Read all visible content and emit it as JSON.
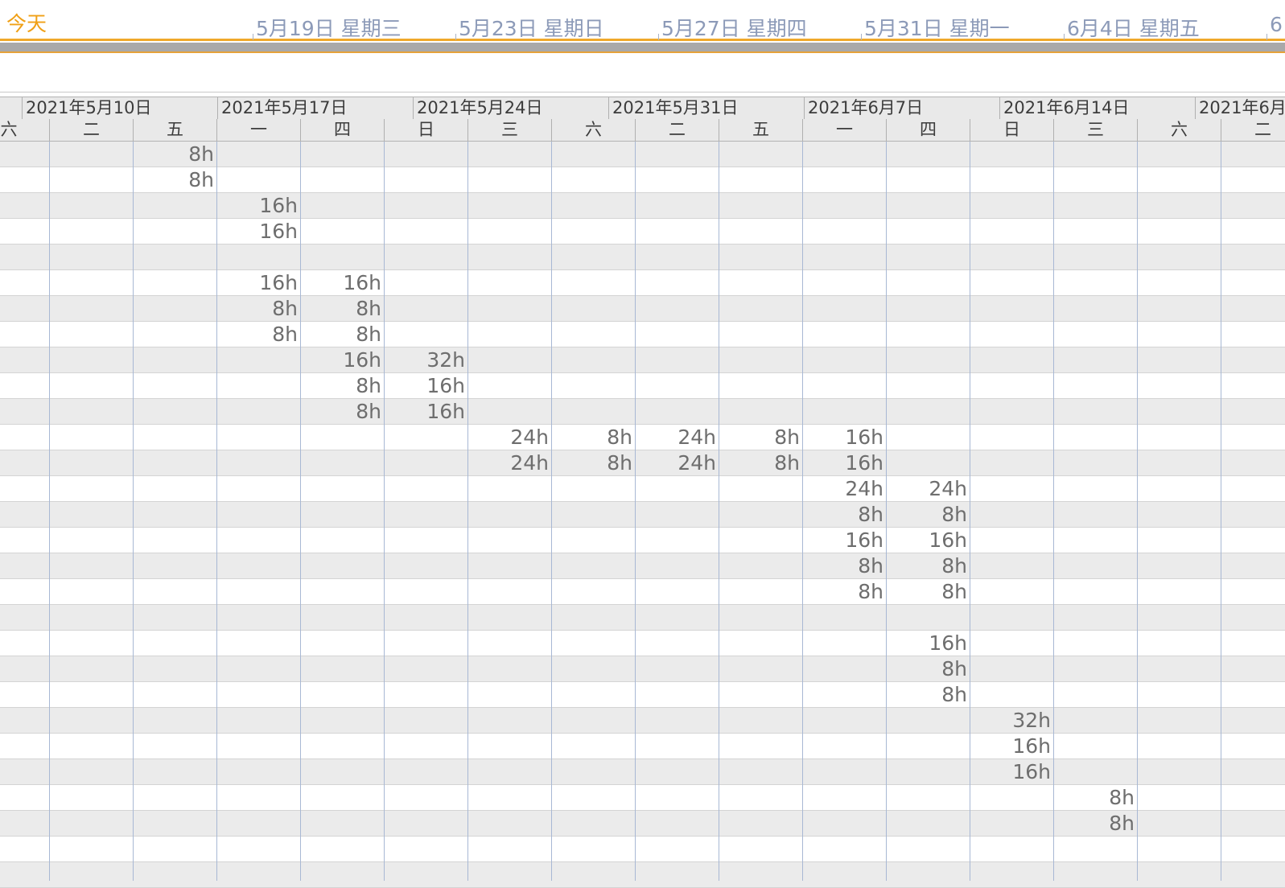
{
  "timeline": {
    "today_label": "今天",
    "labels": [
      "5月19日  星期三",
      "5月23日  星期日",
      "5月27日  星期四",
      "5月31日  星期一",
      "6月4日  星期五",
      "6"
    ]
  },
  "header": {
    "weeks": [
      "2021年5月10日",
      "2021年5月17日",
      "2021年5月24日",
      "2021年5月31日",
      "2021年6月7日",
      "2021年6月14日",
      "2021年6月"
    ],
    "days": [
      "六",
      "二",
      "五",
      "一",
      "四",
      "日",
      "三",
      "六",
      "二",
      "五",
      "一",
      "四",
      "日",
      "三",
      "六",
      "二"
    ]
  },
  "grid": {
    "rows": [
      {
        "cells": [
          null,
          null,
          "8h",
          null,
          null,
          null,
          null,
          null,
          null,
          null,
          null,
          null,
          null,
          null,
          null,
          null
        ]
      },
      {
        "cells": [
          null,
          null,
          "8h",
          null,
          null,
          null,
          null,
          null,
          null,
          null,
          null,
          null,
          null,
          null,
          null,
          null
        ]
      },
      {
        "cells": [
          null,
          null,
          null,
          "16h",
          null,
          null,
          null,
          null,
          null,
          null,
          null,
          null,
          null,
          null,
          null,
          null
        ]
      },
      {
        "cells": [
          null,
          null,
          null,
          "16h",
          null,
          null,
          null,
          null,
          null,
          null,
          null,
          null,
          null,
          null,
          null,
          null
        ]
      },
      {
        "cells": [
          null,
          null,
          null,
          null,
          null,
          null,
          null,
          null,
          null,
          null,
          null,
          null,
          null,
          null,
          null,
          null
        ]
      },
      {
        "cells": [
          null,
          null,
          null,
          "16h",
          "16h",
          null,
          null,
          null,
          null,
          null,
          null,
          null,
          null,
          null,
          null,
          null
        ]
      },
      {
        "cells": [
          null,
          null,
          null,
          "8h",
          "8h",
          null,
          null,
          null,
          null,
          null,
          null,
          null,
          null,
          null,
          null,
          null
        ]
      },
      {
        "cells": [
          null,
          null,
          null,
          "8h",
          "8h",
          null,
          null,
          null,
          null,
          null,
          null,
          null,
          null,
          null,
          null,
          null
        ]
      },
      {
        "cells": [
          null,
          null,
          null,
          null,
          "16h",
          "32h",
          null,
          null,
          null,
          null,
          null,
          null,
          null,
          null,
          null,
          null
        ]
      },
      {
        "cells": [
          null,
          null,
          null,
          null,
          "8h",
          "16h",
          null,
          null,
          null,
          null,
          null,
          null,
          null,
          null,
          null,
          null
        ]
      },
      {
        "cells": [
          null,
          null,
          null,
          null,
          "8h",
          "16h",
          null,
          null,
          null,
          null,
          null,
          null,
          null,
          null,
          null,
          null
        ]
      },
      {
        "cells": [
          null,
          null,
          null,
          null,
          null,
          null,
          "24h",
          "8h",
          "24h",
          "8h",
          "16h",
          null,
          null,
          null,
          null,
          null
        ]
      },
      {
        "cells": [
          null,
          null,
          null,
          null,
          null,
          null,
          "24h",
          "8h",
          "24h",
          "8h",
          "16h",
          null,
          null,
          null,
          null,
          null
        ]
      },
      {
        "cells": [
          null,
          null,
          null,
          null,
          null,
          null,
          null,
          null,
          null,
          null,
          "24h",
          "24h",
          null,
          null,
          null,
          null
        ]
      },
      {
        "cells": [
          null,
          null,
          null,
          null,
          null,
          null,
          null,
          null,
          null,
          null,
          "8h",
          "8h",
          null,
          null,
          null,
          null
        ]
      },
      {
        "cells": [
          null,
          null,
          null,
          null,
          null,
          null,
          null,
          null,
          null,
          null,
          "16h",
          "16h",
          null,
          null,
          null,
          null
        ]
      },
      {
        "cells": [
          null,
          null,
          null,
          null,
          null,
          null,
          null,
          null,
          null,
          null,
          "8h",
          "8h",
          null,
          null,
          null,
          null
        ]
      },
      {
        "cells": [
          null,
          null,
          null,
          null,
          null,
          null,
          null,
          null,
          null,
          null,
          "8h",
          "8h",
          null,
          null,
          null,
          null
        ]
      },
      {
        "cells": [
          null,
          null,
          null,
          null,
          null,
          null,
          null,
          null,
          null,
          null,
          null,
          null,
          null,
          null,
          null,
          null
        ]
      },
      {
        "cells": [
          null,
          null,
          null,
          null,
          null,
          null,
          null,
          null,
          null,
          null,
          null,
          "16h",
          null,
          null,
          null,
          null
        ]
      },
      {
        "cells": [
          null,
          null,
          null,
          null,
          null,
          null,
          null,
          null,
          null,
          null,
          null,
          "8h",
          null,
          null,
          null,
          null
        ]
      },
      {
        "cells": [
          null,
          null,
          null,
          null,
          null,
          null,
          null,
          null,
          null,
          null,
          null,
          "8h",
          null,
          null,
          null,
          null
        ]
      },
      {
        "cells": [
          null,
          null,
          null,
          null,
          null,
          null,
          null,
          null,
          null,
          null,
          null,
          null,
          "32h",
          null,
          null,
          null
        ]
      },
      {
        "cells": [
          null,
          null,
          null,
          null,
          null,
          null,
          null,
          null,
          null,
          null,
          null,
          null,
          "16h",
          null,
          null,
          null
        ]
      },
      {
        "cells": [
          null,
          null,
          null,
          null,
          null,
          null,
          null,
          null,
          null,
          null,
          null,
          null,
          "16h",
          null,
          null,
          null
        ]
      },
      {
        "cells": [
          null,
          null,
          null,
          null,
          null,
          null,
          null,
          null,
          null,
          null,
          null,
          null,
          null,
          "8h",
          null,
          null
        ]
      },
      {
        "cells": [
          null,
          null,
          null,
          null,
          null,
          null,
          null,
          null,
          null,
          null,
          null,
          null,
          null,
          "8h",
          null,
          null
        ]
      },
      {
        "cells": [
          null,
          null,
          null,
          null,
          null,
          null,
          null,
          null,
          null,
          null,
          null,
          null,
          null,
          null,
          null,
          null
        ]
      },
      {
        "cells": [
          null,
          null,
          null,
          null,
          null,
          null,
          null,
          null,
          null,
          null,
          null,
          null,
          null,
          null,
          null,
          null
        ]
      }
    ]
  }
}
